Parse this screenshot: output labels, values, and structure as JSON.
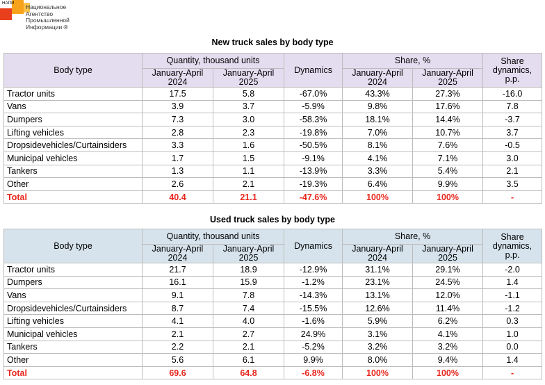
{
  "logo": {
    "abbr": "НАПИ",
    "name_lines": [
      "Национальное",
      "Агентство",
      "Промышленной",
      "Информации ®"
    ]
  },
  "tables": {
    "new": {
      "title": "New truck sales by body type",
      "headers": {
        "body_type": "Body type",
        "quantity": "Quantity, thousand units",
        "period1": "January-April 2024",
        "period2": "January-April 2025",
        "dynamics": "Dynamics",
        "share": "Share, %",
        "share_period1": "January-April 2024",
        "share_period2": "January-April 2025",
        "share_dynamics": "Share dynamics, p.p."
      },
      "rows": [
        [
          "Tractor units",
          "17.5",
          "5.8",
          "-67.0%",
          "43.3%",
          "27.3%",
          "-16.0"
        ],
        [
          "Vans",
          "3.9",
          "3.7",
          "-5.9%",
          "9.8%",
          "17.6%",
          "7.8"
        ],
        [
          "Dumpers",
          "7.3",
          "3.0",
          "-58.3%",
          "18.1%",
          "14.4%",
          "-3.7"
        ],
        [
          "Lifting vehicles",
          "2.8",
          "2.3",
          "-19.8%",
          "7.0%",
          "10.7%",
          "3.7"
        ],
        [
          "Dropsidevehicles/Curtainsiders",
          "3.3",
          "1.6",
          "-50.5%",
          "8.1%",
          "7.6%",
          "-0.5"
        ],
        [
          "Municipal vehicles",
          "1.7",
          "1.5",
          "-9.1%",
          "4.1%",
          "7.1%",
          "3.0"
        ],
        [
          "Tankers",
          "1.3",
          "1.1",
          "-13.9%",
          "3.3%",
          "5.4%",
          "2.1"
        ],
        [
          "Other",
          "2.6",
          "2.1",
          "-19.3%",
          "6.4%",
          "9.9%",
          "3.5"
        ]
      ],
      "total": [
        "Total",
        "40.4",
        "21.1",
        "-47.6%",
        "100%",
        "100%",
        "-"
      ]
    },
    "used": {
      "title": "Used truck sales by body type",
      "headers": {
        "body_type": "Body type",
        "quantity": "Quantity, thousand units",
        "period1": "January-April 2024",
        "period2": "January-April 2025",
        "dynamics": "Dynamics",
        "share": "Share, %",
        "share_period1": "January-April 2024",
        "share_period2": "January-April 2025",
        "share_dynamics": "Share dynamics, p.p."
      },
      "rows": [
        [
          "Tractor units",
          "21.7",
          "18.9",
          "-12.9%",
          "31.1%",
          "29.1%",
          "-2.0"
        ],
        [
          "Dumpers",
          "16.1",
          "15.9",
          "-1.2%",
          "23.1%",
          "24.5%",
          "1.4"
        ],
        [
          "Vans",
          "9.1",
          "7.8",
          "-14.3%",
          "13.1%",
          "12.0%",
          "-1.1"
        ],
        [
          "Dropsidevehicles/Curtainsiders",
          "8.7",
          "7.4",
          "-15.5%",
          "12.6%",
          "11.4%",
          "-1.2"
        ],
        [
          "Lifting vehicles",
          "4.1",
          "4.0",
          "-1.6%",
          "5.9%",
          "6.2%",
          "0.3"
        ],
        [
          "Municipal vehicles",
          "2.1",
          "2.7",
          "24.9%",
          "3.1%",
          "4.1%",
          "1.0"
        ],
        [
          "Tankers",
          "2.2",
          "2.1",
          "-5.2%",
          "3.2%",
          "3.2%",
          "0.0"
        ],
        [
          "Other",
          "5.6",
          "6.1",
          "9.9%",
          "8.0%",
          "9.4%",
          "1.4"
        ]
      ],
      "total": [
        "Total",
        "69.6",
        "64.8",
        "-6.8%",
        "100%",
        "100%",
        "-"
      ]
    }
  }
}
